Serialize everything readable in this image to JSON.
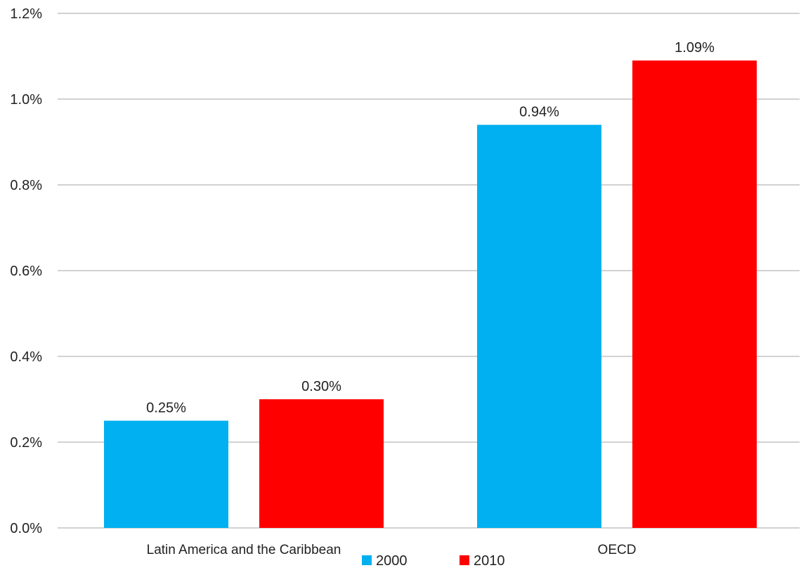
{
  "chart_data": {
    "type": "bar",
    "categories": [
      "Latin America and the Caribbean",
      "OECD"
    ],
    "series": [
      {
        "name": "2000",
        "color": "#00b0f0",
        "values": [
          0.25,
          0.94
        ],
        "labels": [
          "0.25%",
          "0.94%"
        ]
      },
      {
        "name": "2010",
        "color": "#ff0000",
        "values": [
          0.3,
          1.09
        ],
        "labels": [
          "0.30%",
          "1.09%"
        ]
      }
    ],
    "ylim": [
      0,
      1.2
    ],
    "yticks": [
      {
        "value": 0.0,
        "label": "0.0%"
      },
      {
        "value": 0.2,
        "label": "0.2%"
      },
      {
        "value": 0.4,
        "label": "0.4%"
      },
      {
        "value": 0.6,
        "label": "0.6%"
      },
      {
        "value": 0.8,
        "label": "0.8%"
      },
      {
        "value": 1.0,
        "label": "1.0%"
      },
      {
        "value": 1.2,
        "label": "1.2%"
      }
    ],
    "grid": true,
    "legend": "bottom-center",
    "gridColor": "#a6a6a6"
  }
}
